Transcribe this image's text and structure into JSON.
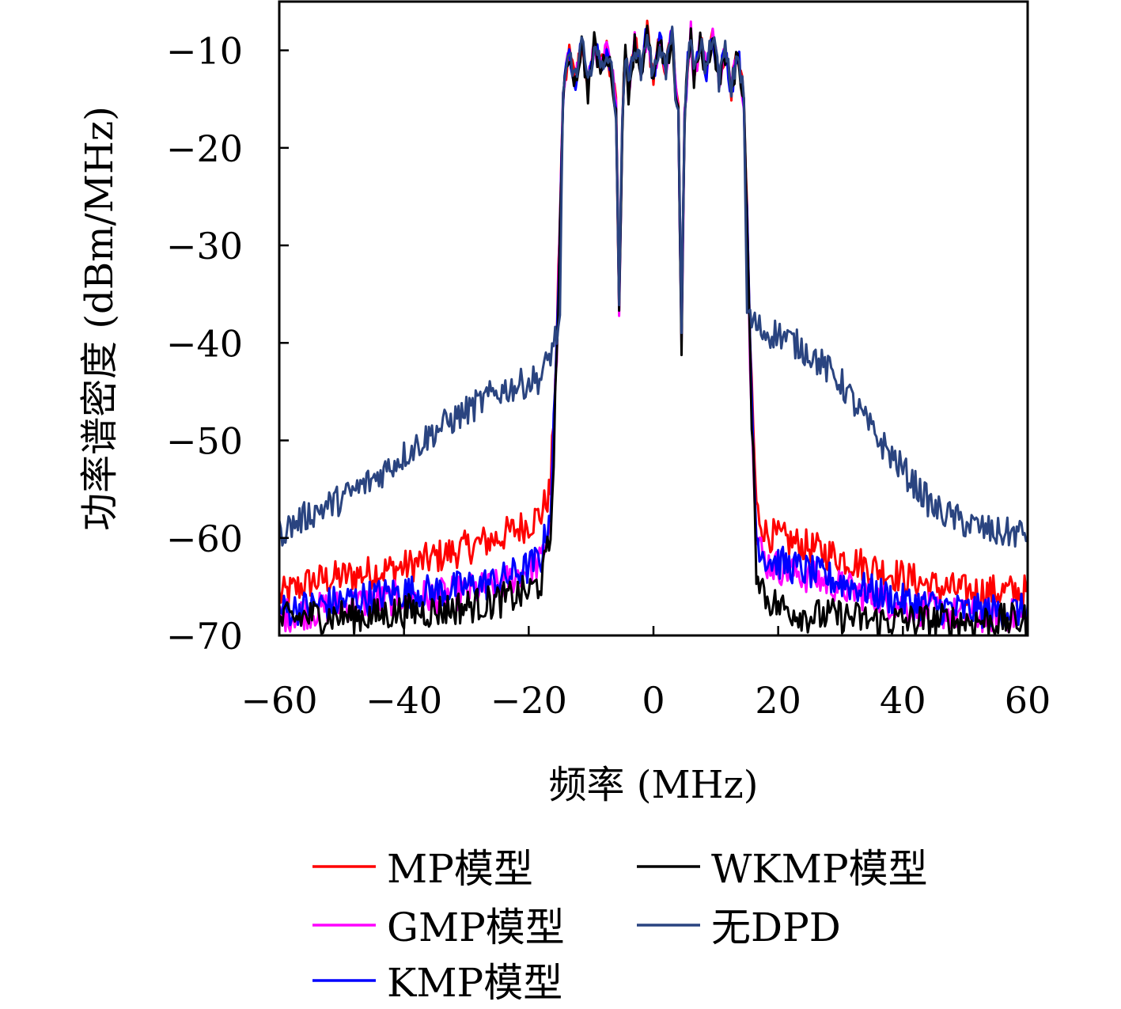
{
  "chart_data": {
    "type": "line",
    "xlabel": "频率 (MHz)",
    "ylabel": "功率谱密度 (dBm/MHz)",
    "xlim": [
      -60,
      60
    ],
    "ylim": [
      -70,
      -5
    ],
    "xticks": [
      -60,
      -40,
      -20,
      0,
      20,
      40,
      60
    ],
    "yticks": [
      -10,
      -20,
      -30,
      -40,
      -50,
      -60,
      -70
    ],
    "x_tick_labels": [
      "−60",
      "−40",
      "−20",
      "0",
      "20",
      "40",
      "60"
    ],
    "y_tick_labels": [
      "−10",
      "−20",
      "−30",
      "−40",
      "−50",
      "−60",
      "−70"
    ],
    "grid": false,
    "legend_position": "bottom",
    "series": [
      {
        "name": "MP模型",
        "color": "#ff0000",
        "x": [
          -60,
          -55,
          -50,
          -45,
          -40,
          -35,
          -30,
          -25,
          -20,
          -18,
          -16.5,
          -15.5,
          -14.5,
          14.5,
          15.5,
          16.5,
          18,
          20,
          25,
          30,
          35,
          40,
          45,
          50,
          55,
          60
        ],
        "y": [
          -66,
          -64.5,
          -64,
          -63.5,
          -63,
          -62,
          -61,
          -60,
          -58.5,
          -57.5,
          -55,
          -40,
          -15,
          -15,
          -40,
          -57,
          -59.5,
          -60,
          -61,
          -62,
          -63,
          -64,
          -65,
          -65.5,
          -65.5,
          -65.5
        ]
      },
      {
        "name": "GMP模型",
        "color": "#ff00ff",
        "x": [
          -60,
          -55,
          -50,
          -45,
          -40,
          -35,
          -30,
          -25,
          -20,
          -18,
          -16.5,
          -15.5,
          -14.5,
          14.5,
          15.5,
          16.5,
          18,
          20,
          25,
          30,
          35,
          40,
          45,
          50,
          55,
          60
        ],
        "y": [
          -68,
          -67.5,
          -67,
          -66.5,
          -66,
          -66,
          -65.5,
          -65,
          -63,
          -62.5,
          -58,
          -41,
          -15,
          -15,
          -41,
          -60,
          -62.5,
          -63,
          -64,
          -65,
          -66,
          -67,
          -67.5,
          -68,
          -68,
          -68
        ]
      },
      {
        "name": "KMP模型",
        "color": "#0000ff",
        "x": [
          -60,
          -55,
          -50,
          -45,
          -40,
          -35,
          -30,
          -25,
          -20,
          -18,
          -16.5,
          -15.5,
          -14.5,
          14.5,
          15.5,
          16.5,
          18,
          20,
          25,
          30,
          35,
          40,
          45,
          50,
          55,
          60
        ],
        "y": [
          -67.5,
          -67,
          -66.5,
          -66,
          -65.5,
          -65.5,
          -65,
          -64.5,
          -63,
          -62,
          -57,
          -40.5,
          -15,
          -15,
          -40.5,
          -60,
          -62,
          -62.5,
          -63.5,
          -64.5,
          -65.5,
          -66.5,
          -67,
          -67.5,
          -67.5,
          -67.5
        ]
      },
      {
        "name": "WKMP模型",
        "color": "#000000",
        "x": [
          -60,
          -55,
          -50,
          -45,
          -40,
          -35,
          -30,
          -25,
          -20,
          -18,
          -16.5,
          -15.5,
          -14.5,
          14.5,
          15.5,
          16.5,
          18,
          20,
          25,
          30,
          35,
          40,
          45,
          50,
          55,
          60
        ],
        "y": [
          -68.5,
          -68,
          -68,
          -68,
          -67.5,
          -67.5,
          -67,
          -66.5,
          -65.5,
          -64.5,
          -60,
          -42,
          -14.5,
          -14.5,
          -42,
          -63,
          -66,
          -67,
          -68,
          -68,
          -68.5,
          -68.5,
          -68.5,
          -68.5,
          -68.5,
          -68.5
        ]
      },
      {
        "name": "无DPD",
        "color": "#2a4480",
        "x": [
          -60,
          -55,
          -50,
          -45,
          -40,
          -35,
          -30,
          -25,
          -20,
          -18,
          -17,
          -16,
          -15,
          -14.5,
          14.5,
          15,
          16,
          17,
          18,
          20,
          25,
          30,
          35,
          40,
          45,
          50,
          55,
          60
        ],
        "y": [
          -59.5,
          -57.5,
          -56,
          -54,
          -51.5,
          -49,
          -47,
          -45,
          -44,
          -43.5,
          -42,
          -40,
          -38,
          -15,
          -15,
          -37,
          -38,
          -38.5,
          -39,
          -39,
          -41,
          -44,
          -49,
          -53,
          -57,
          -58.5,
          -59.5,
          -59.5
        ]
      }
    ],
    "passband": {
      "x": [
        -14.5,
        -13.5,
        -12.5,
        -11.5,
        -10.5,
        -9.5,
        -8.5,
        -7.5,
        -6.5,
        -6,
        -5.5,
        -5,
        -4.5,
        -4,
        -3,
        -2,
        -1,
        0,
        1,
        2,
        3,
        3.5,
        4,
        4.5,
        5,
        5.5,
        6,
        6.5,
        7.5,
        8.5,
        9.5,
        10.5,
        11.5,
        12.5,
        13.5,
        14.5
      ],
      "y": [
        -15,
        -10,
        -13,
        -9,
        -14,
        -9,
        -12,
        -10,
        -13,
        -16,
        -36,
        -17,
        -10,
        -14,
        -9,
        -12,
        -8,
        -13,
        -9,
        -12,
        -8,
        -14,
        -16,
        -40,
        -17,
        -11,
        -8,
        -13,
        -9,
        -12,
        -8,
        -13,
        -10,
        -14,
        -10,
        -15
      ]
    }
  },
  "legend": {
    "items": [
      {
        "label": "MP模型",
        "color": "#ff0000"
      },
      {
        "label": "GMP模型",
        "color": "#ff00ff"
      },
      {
        "label": "KMP模型",
        "color": "#0000ff"
      },
      {
        "label": "WKMP模型",
        "color": "#000000"
      },
      {
        "label": "无DPD",
        "color": "#2a4480"
      }
    ]
  }
}
